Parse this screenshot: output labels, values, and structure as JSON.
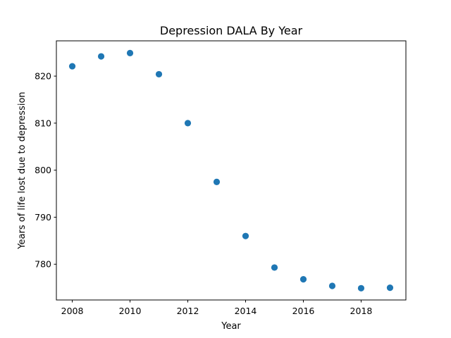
{
  "chart_data": {
    "type": "scatter",
    "title": "Depression DALA By Year",
    "xlabel": "Year",
    "ylabel": "Years of life lost due to depression",
    "x": [
      2008,
      2009,
      2010,
      2011,
      2012,
      2013,
      2014,
      2015,
      2016,
      2017,
      2018,
      2019
    ],
    "y": [
      822.1,
      824.2,
      824.9,
      820.4,
      810.0,
      797.5,
      786.0,
      779.3,
      776.8,
      775.4,
      774.9,
      775.0
    ],
    "xlim": [
      2007.45,
      2019.55
    ],
    "ylim": [
      772.4,
      827.5
    ],
    "xticks": [
      "2008",
      "2010",
      "2012",
      "2014",
      "2016",
      "2018"
    ],
    "yticks": [
      "780",
      "790",
      "800",
      "810",
      "820"
    ],
    "grid": false,
    "marker_color": "#1f77b4"
  }
}
